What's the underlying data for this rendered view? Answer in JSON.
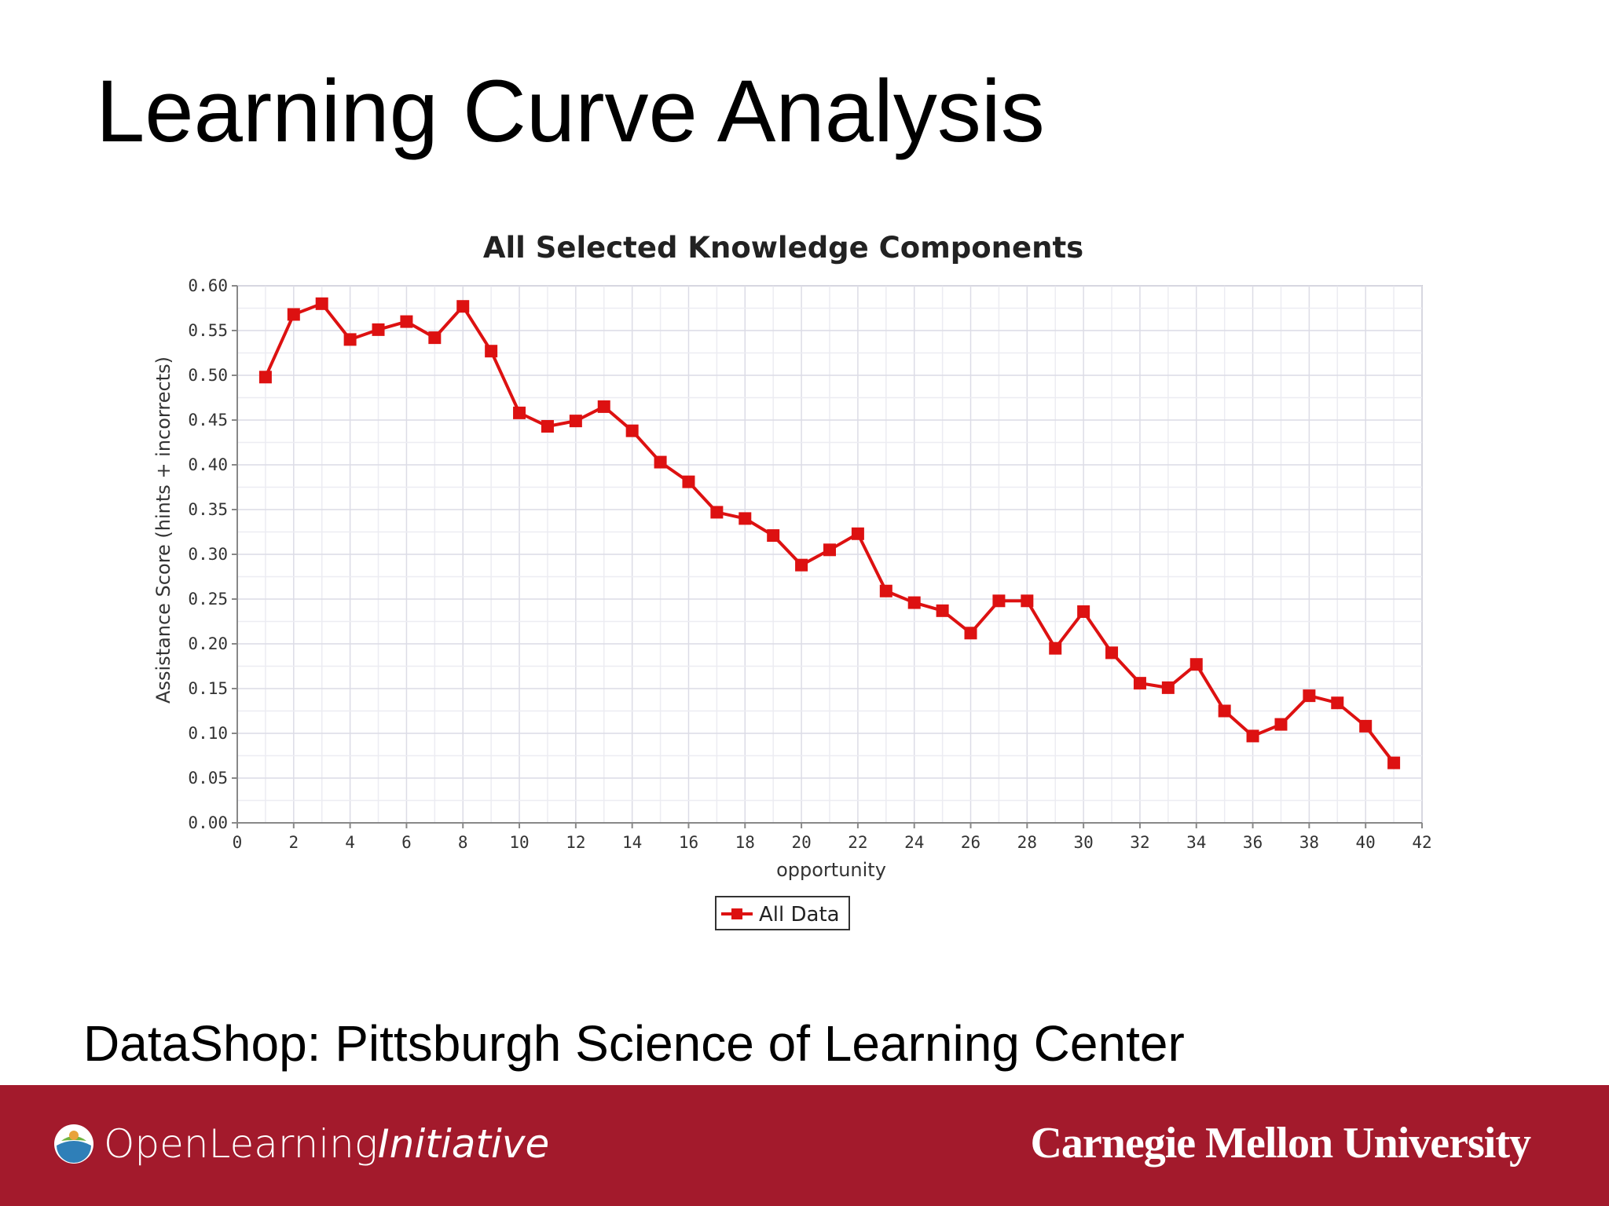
{
  "slide": {
    "title": "Learning Curve Analysis",
    "source": "DataShop:  Pittsburgh Science of Learning Center"
  },
  "footer": {
    "left_logo_main": "OpenLearning",
    "left_logo_italic": "Initiative",
    "right_logo": "Carnegie Mellon University",
    "bar_color": "#a31a2c"
  },
  "chart_data": {
    "type": "line",
    "title": "All Selected Knowledge Components",
    "xlabel": "opportunity",
    "ylabel": "Assistance Score (hints + incorrects)",
    "xlim": [
      0,
      42
    ],
    "ylim": [
      0,
      0.6
    ],
    "x_ticks": [
      0,
      2,
      4,
      6,
      8,
      10,
      12,
      14,
      16,
      18,
      20,
      22,
      24,
      26,
      28,
      30,
      32,
      34,
      36,
      38,
      40,
      42
    ],
    "y_ticks": [
      "0.00",
      "0.05",
      "0.10",
      "0.15",
      "0.20",
      "0.25",
      "0.30",
      "0.35",
      "0.40",
      "0.45",
      "0.50",
      "0.55",
      "0.60"
    ],
    "grid": true,
    "legend_position": "bottom-center",
    "series": [
      {
        "name": "All Data",
        "color": "#dd1111",
        "marker": "square",
        "x": [
          1,
          2,
          3,
          4,
          5,
          6,
          7,
          8,
          9,
          10,
          11,
          12,
          13,
          14,
          15,
          16,
          17,
          18,
          19,
          20,
          21,
          22,
          23,
          24,
          25,
          26,
          27,
          28,
          29,
          30,
          31,
          32,
          33,
          34,
          35,
          36,
          37,
          38,
          39,
          40,
          41
        ],
        "y": [
          0.498,
          0.568,
          0.58,
          0.54,
          0.551,
          0.56,
          0.542,
          0.577,
          0.527,
          0.458,
          0.443,
          0.449,
          0.465,
          0.438,
          0.403,
          0.381,
          0.347,
          0.34,
          0.321,
          0.288,
          0.305,
          0.323,
          0.259,
          0.246,
          0.237,
          0.212,
          0.248,
          0.248,
          0.195,
          0.236,
          0.19,
          0.156,
          0.151,
          0.177,
          0.125,
          0.097,
          0.11,
          0.142,
          0.134,
          0.108,
          0.067
        ]
      }
    ]
  }
}
